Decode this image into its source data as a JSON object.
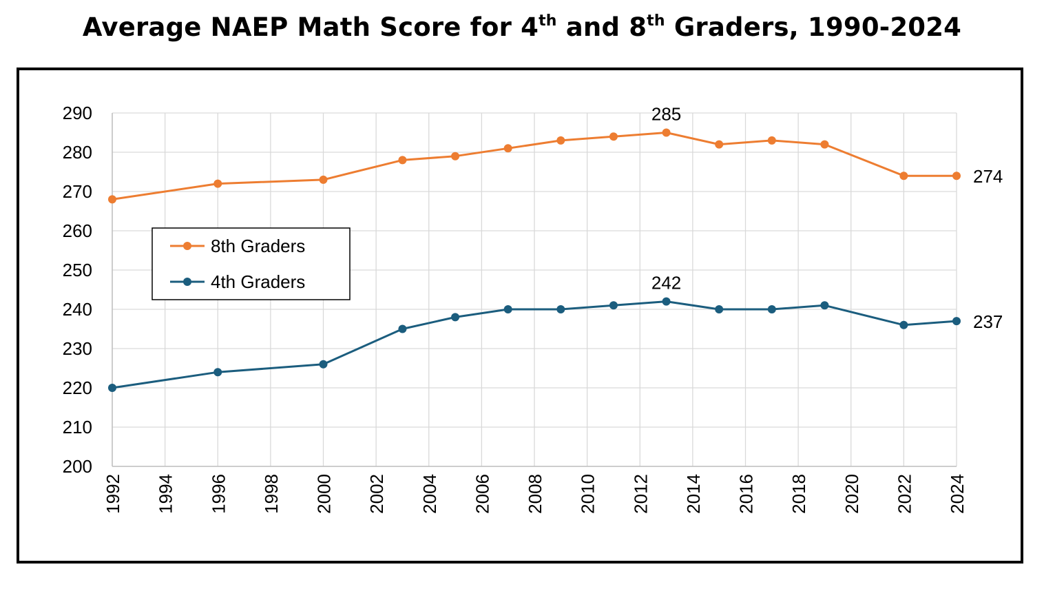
{
  "title": {
    "main": "Average NAEP Math Score for 4",
    "sup1": "th",
    "mid": " and 8",
    "sup2": "th",
    "end": " Graders, 1990-2024"
  },
  "chart_data": {
    "type": "line",
    "title": "Average NAEP Math Score for 4th and 8th Graders, 1990-2024",
    "xlabel": "",
    "ylabel": "",
    "xlim": [
      1992,
      2024
    ],
    "ylim": [
      200,
      290
    ],
    "x_ticks": [
      1992,
      1994,
      1996,
      1998,
      2000,
      2002,
      2004,
      2006,
      2008,
      2010,
      2012,
      2014,
      2016,
      2018,
      2020,
      2022,
      2024
    ],
    "y_ticks": [
      200,
      210,
      220,
      230,
      240,
      250,
      260,
      270,
      280,
      290
    ],
    "grid": true,
    "legend_position": "middle-left",
    "series": [
      {
        "name": "8th Graders",
        "color": "#ED7D31",
        "x": [
          1992,
          1996,
          2000,
          2003,
          2005,
          2007,
          2009,
          2011,
          2013,
          2015,
          2017,
          2019,
          2022,
          2024
        ],
        "values": [
          268,
          272,
          273,
          278,
          279,
          281,
          283,
          284,
          285,
          282,
          283,
          282,
          274,
          274
        ]
      },
      {
        "name": "4th Graders",
        "color": "#1B5D7E",
        "x": [
          1992,
          1996,
          2000,
          2003,
          2005,
          2007,
          2009,
          2011,
          2013,
          2015,
          2017,
          2019,
          2022,
          2024
        ],
        "values": [
          220,
          224,
          226,
          235,
          238,
          240,
          240,
          241,
          242,
          240,
          240,
          241,
          236,
          237
        ]
      }
    ],
    "annotations": [
      {
        "series": 0,
        "x": 2013,
        "text": "285",
        "placement": "above"
      },
      {
        "series": 0,
        "x": 2024,
        "text": "274",
        "placement": "right"
      },
      {
        "series": 1,
        "x": 2013,
        "text": "242",
        "placement": "above"
      },
      {
        "series": 1,
        "x": 2024,
        "text": "237",
        "placement": "right"
      }
    ]
  }
}
